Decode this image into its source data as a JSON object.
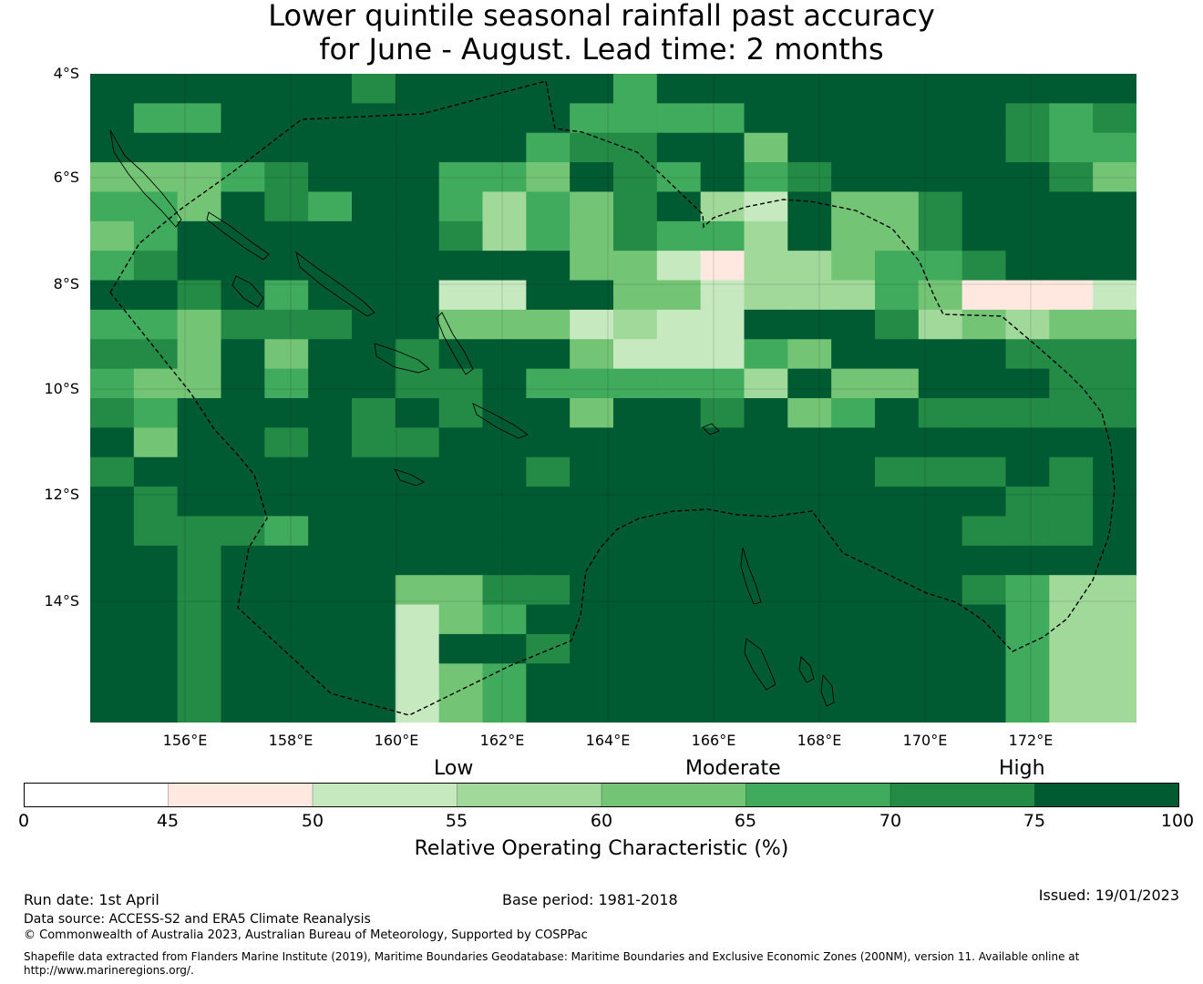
{
  "title": {
    "line1": "Lower quintile seasonal rainfall past accuracy",
    "line2": "for June - August. Lead time: 2 months"
  },
  "map": {
    "lat_labels": [
      "4°S",
      "6°S",
      "8°S",
      "10°S",
      "12°S",
      "14°S"
    ],
    "lon_labels": [
      "156°E",
      "158°E",
      "160°E",
      "162°E",
      "164°E",
      "166°E",
      "168°E",
      "170°E",
      "172°E"
    ]
  },
  "colorbar": {
    "category_low": "Low",
    "category_moderate": "Moderate",
    "category_high": "High",
    "ticks": [
      "0",
      "45",
      "50",
      "55",
      "60",
      "65",
      "70",
      "75",
      "100"
    ],
    "label": "Relative Operating Characteristic (%)",
    "colors": [
      "#ffffff",
      "#fee8df",
      "#c7e9c0",
      "#a1d99b",
      "#74c476",
      "#41ab5d",
      "#238b45",
      "#005a32"
    ]
  },
  "footer": {
    "run_date": "Run date: 1st April",
    "base_period": "Base period: 1981-2018",
    "issued": "Issued: 19/01/2023",
    "data_source": "Data source: ACCESS-S2 and ERA5 Climate Reanalysis",
    "copyright": "© Commonwealth of Australia 2023, Australian Bureau of Meteorology, Supported by COSPPac",
    "shapefile_line1": "Shapefile data extracted from Flanders Marine Institute (2019), Maritime Boundaries Geodatabase: Maritime Boundaries and Exclusive Economic Zones (200NM), version 11. Available online at",
    "shapefile_line2": "http://www.marineregions.org/."
  }
}
